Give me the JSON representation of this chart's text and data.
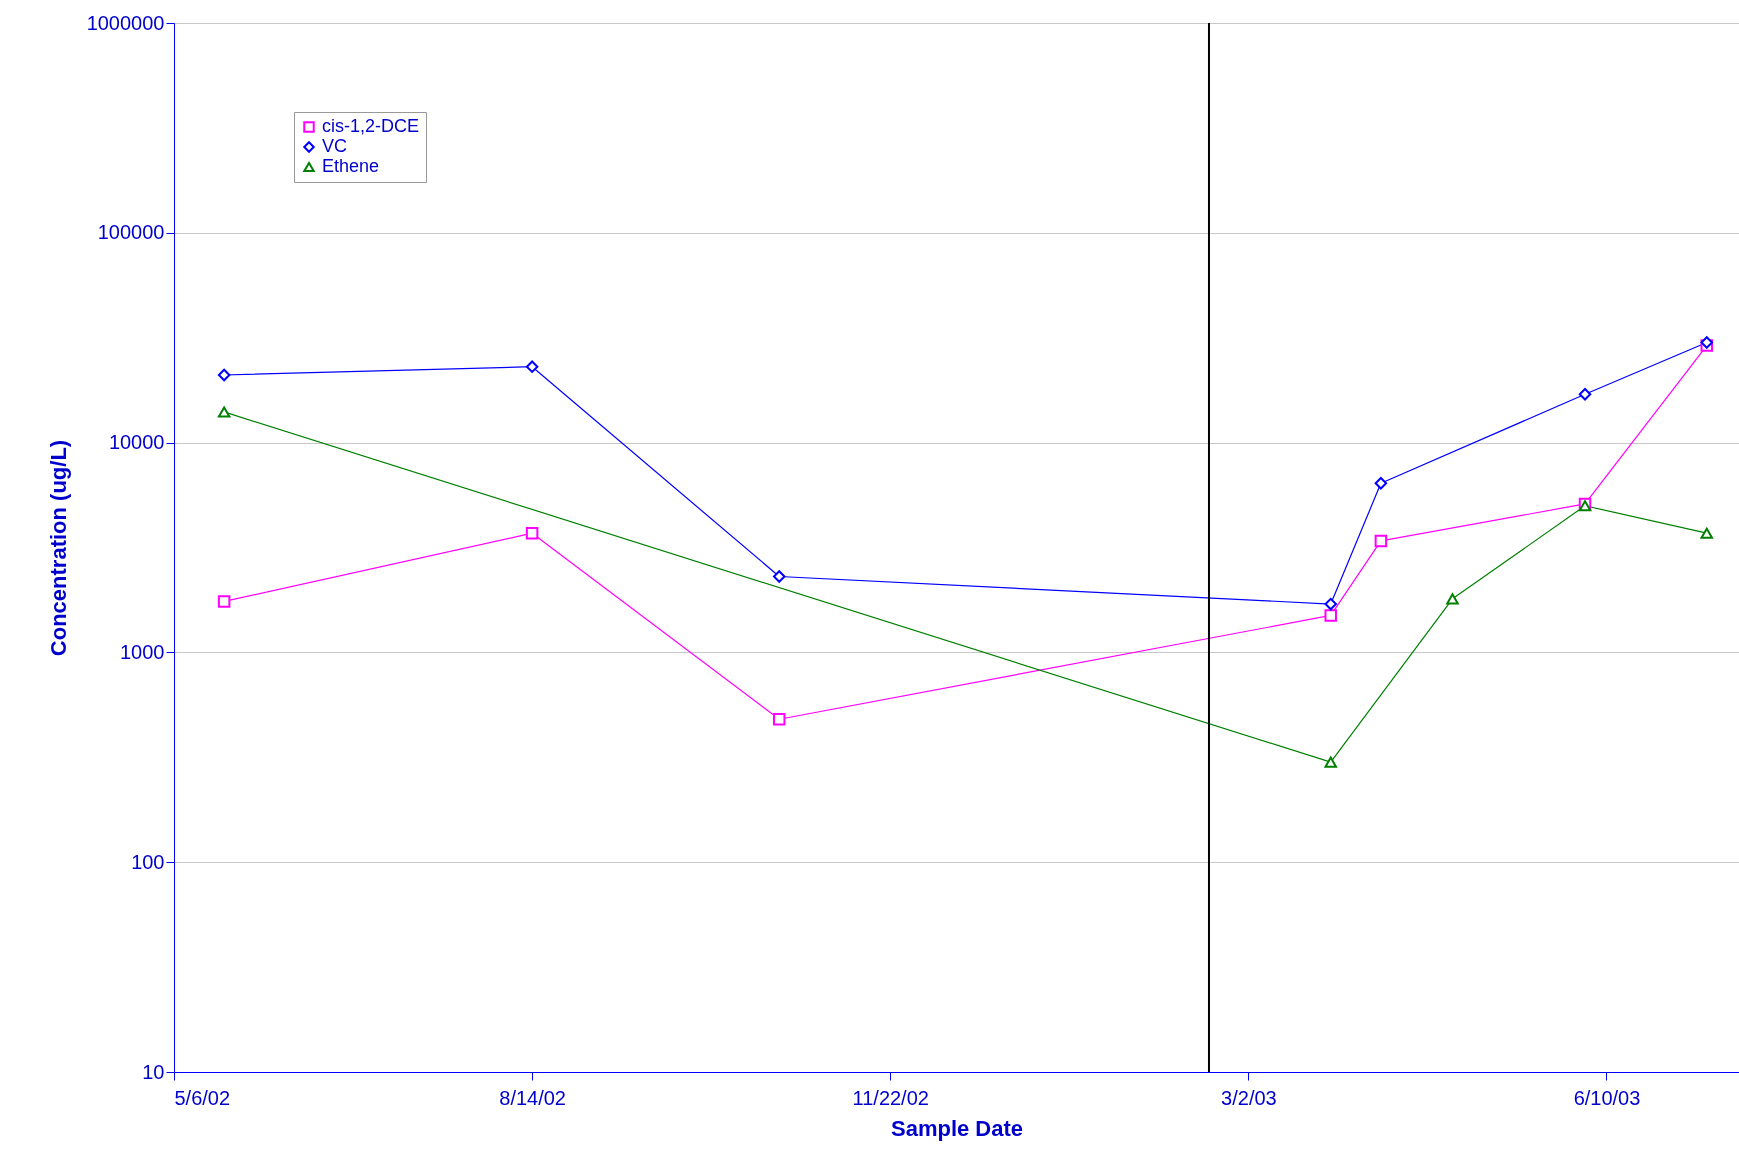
{
  "chart_data": {
    "type": "line",
    "xlabel": "Sample Date",
    "ylabel": "Concentration (ug/L)",
    "log": true,
    "grid": "y",
    "legend": "top left",
    "xlim": [
      "2002-05-06",
      "2003-07-17"
    ],
    "xticks": [
      {
        "value": "2002-05-06",
        "label": "5/6/02"
      },
      {
        "value": "2002-08-14",
        "label": "8/14/02"
      },
      {
        "value": "2002-11-22",
        "label": "11/22/02"
      },
      {
        "value": "2003-03-02",
        "label": "3/2/03"
      },
      {
        "value": "2003-06-10",
        "label": "6/10/03"
      }
    ],
    "ylim": [
      10,
      1000000
    ],
    "yticks": [
      10,
      100,
      1000,
      10000,
      100000,
      1000000
    ],
    "ref_lines": [
      {
        "axis": "x",
        "value": "2003-02-19",
        "color": "#000000"
      }
    ],
    "series": [
      {
        "name": "cis-1,2-DCE",
        "color": "#ff00ff",
        "marker": "square",
        "x": [
          "2002-05-20",
          "2002-08-14",
          "2002-10-22",
          "2003-03-25",
          "2003-04-08",
          "2003-06-04",
          "2003-07-08"
        ],
        "values": [
          1750,
          3700,
          480,
          1500,
          3400,
          5100,
          29000
        ]
      },
      {
        "name": "VC",
        "color": "#0000ff",
        "marker": "diamond",
        "x": [
          "2002-05-20",
          "2002-08-14",
          "2002-10-22",
          "2003-03-25",
          "2003-04-08",
          "2003-06-04",
          "2003-07-08"
        ],
        "values": [
          21000,
          23000,
          2300,
          1700,
          6400,
          17000,
          30000
        ]
      },
      {
        "name": "Ethene",
        "color": "#008000",
        "marker": "triangle",
        "x": [
          "2002-05-20",
          "2003-03-25",
          "2003-04-28",
          "2003-06-04",
          "2003-07-08"
        ],
        "values": [
          14000,
          300,
          1800,
          5000,
          3700
        ]
      }
    ]
  }
}
